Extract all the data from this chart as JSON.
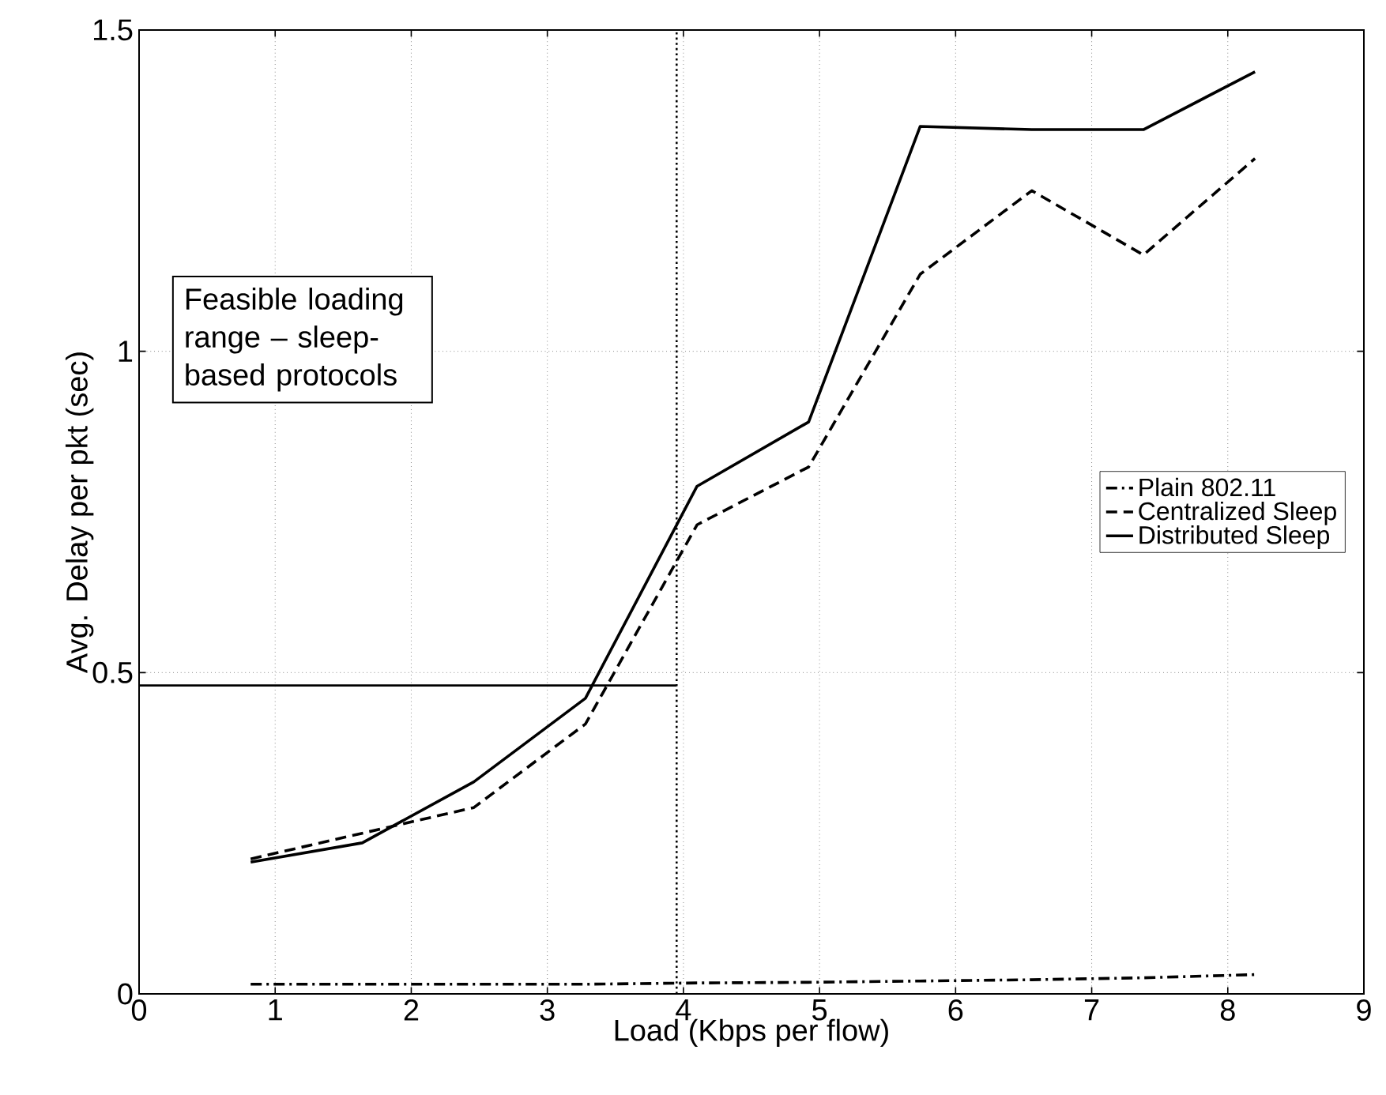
{
  "chart_data": {
    "type": "line",
    "xlabel": "Load (Kbps per flow)",
    "ylabel": "Avg. Delay per pkt (sec)",
    "x": [
      0.82,
      1.64,
      2.46,
      3.28,
      4.1,
      4.92,
      5.74,
      6.56,
      7.38,
      8.2
    ],
    "series": [
      {
        "name": "Plain 802.11",
        "color": "#000000",
        "line_style": "dashdot",
        "values": [
          0.015,
          0.015,
          0.015,
          0.015,
          0.017,
          0.018,
          0.02,
          0.022,
          0.025,
          0.03
        ]
      },
      {
        "name": "Centralized Sleep",
        "color": "#000000",
        "line_style": "dashed",
        "values": [
          0.21,
          0.25,
          0.29,
          0.42,
          0.73,
          0.82,
          1.12,
          1.25,
          1.15,
          1.3
        ]
      },
      {
        "name": "Distributed Sleep",
        "color": "#000000",
        "line_style": "solid",
        "values": [
          0.205,
          0.235,
          0.33,
          0.46,
          0.79,
          0.89,
          1.35,
          1.345,
          1.345,
          1.435
        ]
      }
    ],
    "xlim": [
      0,
      9
    ],
    "ylim": [
      0,
      1.5
    ],
    "xticks": [
      0,
      1,
      2,
      3,
      4,
      5,
      6,
      7,
      8,
      9
    ],
    "yticks": [
      0,
      0.5,
      1,
      1.5
    ],
    "grid": true,
    "legend": "right",
    "marker": "none",
    "ref_lines": [
      {
        "axis": "x",
        "value": 3.95,
        "line_style": "dotted"
      },
      {
        "axis": "y",
        "value": 0.48,
        "line_style": "solid"
      }
    ],
    "annotations": [
      "Feasible loading range – sleep-based protocols"
    ]
  }
}
